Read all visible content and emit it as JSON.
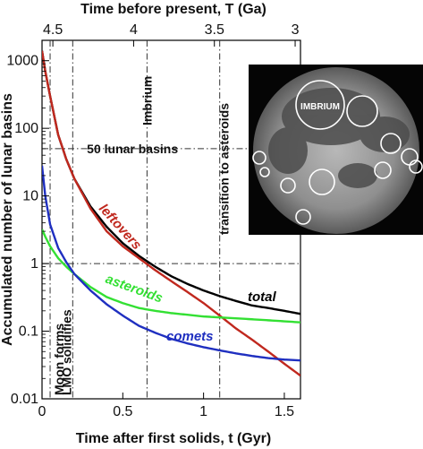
{
  "chart_data": {
    "type": "line",
    "xlabel": "Time after first solids, t (Gyr)",
    "ylabel": "Accumulated number of lunar basins",
    "top_xlabel": "Time before present, T (Ga)",
    "xlim": [
      0,
      1.6
    ],
    "ylim": [
      0.01,
      2000
    ],
    "yscale": "log",
    "x_ticks": [
      {
        "value": 0,
        "label": "0"
      },
      {
        "value": 0.5,
        "label": "0.5"
      },
      {
        "value": 1,
        "label": "1"
      },
      {
        "value": 1.5,
        "label": "1.5"
      }
    ],
    "y_ticks": [
      {
        "value": 0.01,
        "label": "0.01"
      },
      {
        "value": 0.1,
        "label": "0.1"
      },
      {
        "value": 1,
        "label": "1"
      },
      {
        "value": 10,
        "label": "10"
      },
      {
        "value": 100,
        "label": "100"
      },
      {
        "value": 1000,
        "label": "1000"
      }
    ],
    "top_ticks": [
      {
        "value": 0.067,
        "label": "4.5"
      },
      {
        "value": 0.567,
        "label": "4"
      },
      {
        "value": 1.067,
        "label": "3.5"
      },
      {
        "value": 1.567,
        "label": "3"
      }
    ],
    "series": [
      {
        "name": "total",
        "color": "#000000",
        "x": [
          0,
          0.02,
          0.05,
          0.1,
          0.15,
          0.2,
          0.3,
          0.4,
          0.5,
          0.6,
          0.7,
          0.8,
          0.9,
          1.0,
          1.1,
          1.2,
          1.3,
          1.4,
          1.5,
          1.6
        ],
        "values": [
          1400,
          700,
          300,
          80,
          35,
          18,
          7,
          3.5,
          2,
          1.3,
          0.9,
          0.65,
          0.5,
          0.4,
          0.33,
          0.28,
          0.24,
          0.22,
          0.2,
          0.18
        ]
      },
      {
        "name": "leftovers",
        "color": "#c0281e",
        "x": [
          0,
          0.02,
          0.05,
          0.1,
          0.15,
          0.2,
          0.3,
          0.4,
          0.5,
          0.6,
          0.7,
          0.8,
          0.9,
          1.0,
          1.1,
          1.2,
          1.3,
          1.4,
          1.5,
          1.6
        ],
        "values": [
          1400,
          700,
          300,
          80,
          35,
          18,
          6.5,
          3,
          1.8,
          1.2,
          0.8,
          0.55,
          0.38,
          0.26,
          0.17,
          0.11,
          0.075,
          0.05,
          0.033,
          0.022
        ]
      },
      {
        "name": "asteroids",
        "color": "#33e033",
        "x": [
          0,
          0.02,
          0.05,
          0.1,
          0.15,
          0.2,
          0.3,
          0.4,
          0.5,
          0.6,
          0.7,
          0.8,
          0.9,
          1.0,
          1.1,
          1.2,
          1.3,
          1.4,
          1.5,
          1.6
        ],
        "values": [
          3.2,
          2.5,
          1.8,
          1.2,
          0.9,
          0.7,
          0.45,
          0.32,
          0.26,
          0.22,
          0.2,
          0.185,
          0.175,
          0.165,
          0.16,
          0.155,
          0.15,
          0.145,
          0.14,
          0.135
        ]
      },
      {
        "name": "comets",
        "color": "#1f2fc0",
        "x": [
          0,
          0.02,
          0.05,
          0.1,
          0.15,
          0.2,
          0.3,
          0.4,
          0.5,
          0.6,
          0.7,
          0.8,
          0.9,
          1.0,
          1.1,
          1.2,
          1.3,
          1.4,
          1.5,
          1.6
        ],
        "values": [
          28,
          10,
          3.8,
          1.7,
          1.05,
          0.7,
          0.4,
          0.25,
          0.17,
          0.12,
          0.095,
          0.077,
          0.066,
          0.058,
          0.052,
          0.047,
          0.043,
          0.04,
          0.038,
          0.037
        ]
      }
    ],
    "vertical_markers": [
      {
        "x": 0.05,
        "label": "Moon forms"
      },
      {
        "x": 0.19,
        "label": "LMO solidifies"
      },
      {
        "x": 0.65,
        "label": "Imbrium"
      },
      {
        "x": 1.1,
        "label": "transition to asteroids"
      }
    ],
    "horizontal_markers": [
      {
        "y": 50,
        "label": "50 lunar basins"
      },
      {
        "y": 1,
        "label": ""
      }
    ],
    "inset": {
      "label": "IMBRIUM"
    }
  }
}
